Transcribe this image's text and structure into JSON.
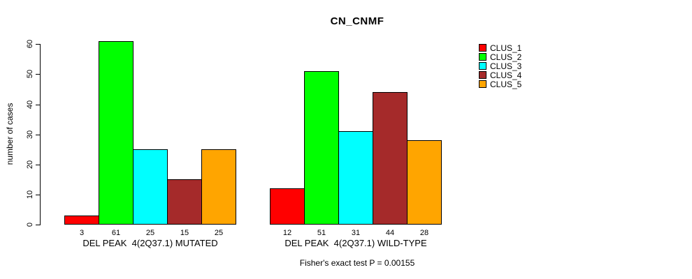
{
  "title": "CN_CNMF",
  "y_axis": {
    "label": "number of cases",
    "ticks": [
      0,
      10,
      20,
      30,
      40,
      50,
      60
    ]
  },
  "footer": "Fisher's exact test P = 0.00155",
  "legend": {
    "items": [
      {
        "label": "CLUS_1",
        "color": "#FF0000"
      },
      {
        "label": "CLUS_2",
        "color": "#00FF00"
      },
      {
        "label": "CLUS_3",
        "color": "#00FFFF"
      },
      {
        "label": "CLUS_4",
        "color": "#A52A2A"
      },
      {
        "label": "CLUS_5",
        "color": "#FFA500"
      }
    ]
  },
  "chart_data": {
    "type": "bar",
    "title": "CN_CNMF",
    "xlabel": "",
    "ylabel": "number of cases",
    "ylim": [
      0,
      60
    ],
    "yticks": [
      0,
      10,
      20,
      30,
      40,
      50,
      60
    ],
    "grid": false,
    "legend_position": "right",
    "categories": [
      "DEL PEAK  4(2Q37.1) MUTATED",
      "DEL PEAK  4(2Q37.1) WILD-TYPE"
    ],
    "series": [
      {
        "name": "CLUS_1",
        "color": "#FF0000",
        "values": [
          3,
          12
        ]
      },
      {
        "name": "CLUS_2",
        "color": "#00FF00",
        "values": [
          61,
          51
        ]
      },
      {
        "name": "CLUS_3",
        "color": "#00FFFF",
        "values": [
          25,
          31
        ]
      },
      {
        "name": "CLUS_4",
        "color": "#A52A2A",
        "values": [
          15,
          44
        ]
      },
      {
        "name": "CLUS_5",
        "color": "#FFA500",
        "values": [
          25,
          28
        ]
      }
    ],
    "bar_value_labels": [
      [
        3,
        61,
        25,
        15,
        25
      ],
      [
        12,
        51,
        31,
        44,
        28
      ]
    ],
    "annotation": "Fisher's exact test P = 0.00155"
  }
}
